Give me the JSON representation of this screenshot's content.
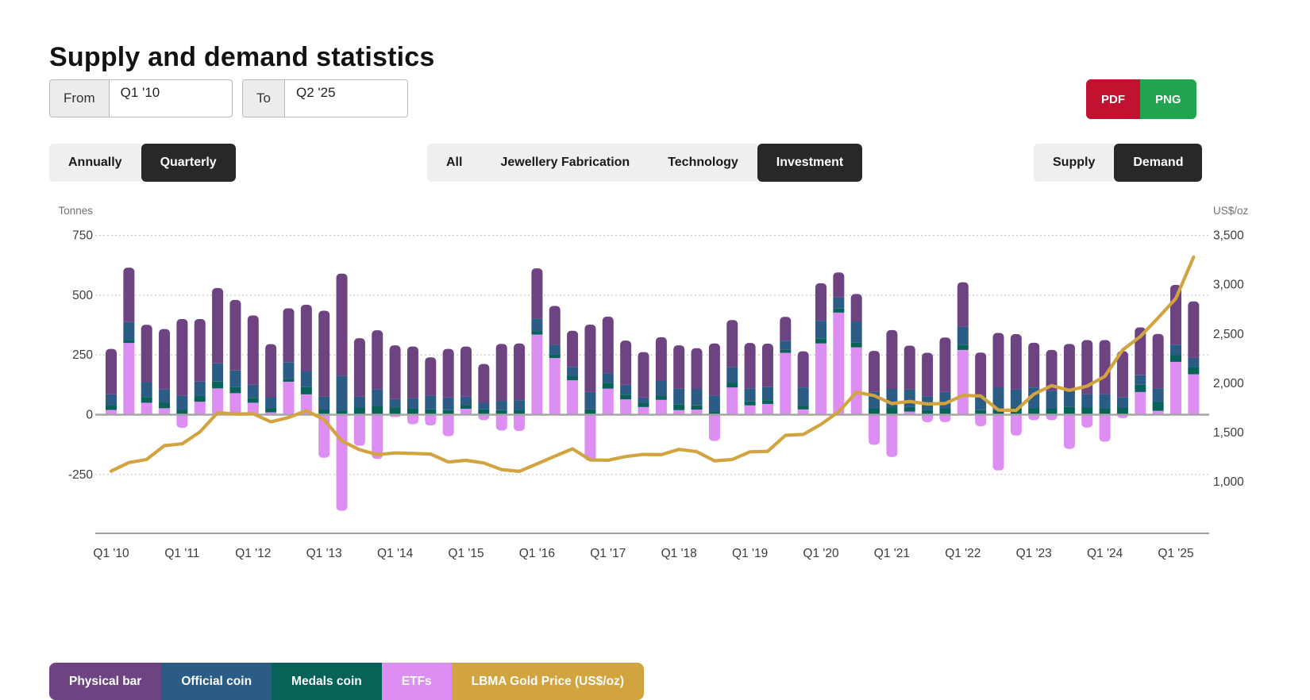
{
  "title": "Supply and demand statistics",
  "filters": {
    "from_label": "From",
    "from_value": "Q1 '10",
    "to_label": "To",
    "to_value": "Q2 '25"
  },
  "export": {
    "pdf_label": "PDF",
    "png_label": "PNG",
    "pdf_color": "#c1122f",
    "png_color": "#21a550"
  },
  "toggles": {
    "frequency": [
      {
        "label": "Annually",
        "selected": false
      },
      {
        "label": "Quarterly",
        "selected": true
      }
    ],
    "category": [
      {
        "label": "All",
        "selected": false
      },
      {
        "label": "Jewellery Fabrication",
        "selected": false
      },
      {
        "label": "Technology",
        "selected": false
      },
      {
        "label": "Investment",
        "selected": true
      }
    ],
    "flow": [
      {
        "label": "Supply",
        "selected": false
      },
      {
        "label": "Demand",
        "selected": true
      }
    ]
  },
  "colors": {
    "physical_bar": "#6d4382",
    "official_coin": "#2b5c85",
    "medals_coin": "#076257",
    "etfs": "#dd8ef2",
    "gold_line": "#d2a440",
    "grid": "#c9c9c9",
    "zero_line": "#a5a5a5",
    "axis_line": "#9e9e9e",
    "tick_text": "#3c3c3c",
    "unit_text": "#717171",
    "selected_bg": "#282828",
    "unselected_bg": "#efefef"
  },
  "chart_data": {
    "type": "bar",
    "subtype": "stacked bars with secondary-axis line",
    "left_axis": {
      "title": "Tonnes",
      "ticks": [
        {
          "label": "750",
          "value": 750
        },
        {
          "label": "500",
          "value": 500
        },
        {
          "label": "250",
          "value": 250
        },
        {
          "label": "0",
          "value": 0
        },
        {
          "label": "-250",
          "value": -250
        }
      ],
      "range": [
        -420,
        750
      ]
    },
    "right_axis": {
      "title": "US$/oz",
      "ticks": [
        {
          "label": "3,500",
          "value": 3500
        },
        {
          "label": "3,000",
          "value": 3000
        },
        {
          "label": "2,500",
          "value": 2500
        },
        {
          "label": "2,000",
          "value": 2000
        },
        {
          "label": "1,500",
          "value": 1500
        },
        {
          "label": "1,000",
          "value": 1000
        }
      ],
      "range": [
        1000,
        3500
      ]
    },
    "grid": "dotted horizontal at left-axis ticks",
    "legend_position": "bottom-left",
    "categories": [
      "Q1 '10",
      "Q2 '10",
      "Q3 '10",
      "Q4 '10",
      "Q1 '11",
      "Q2 '11",
      "Q3 '11",
      "Q4 '11",
      "Q1 '12",
      "Q2 '12",
      "Q3 '12",
      "Q4 '12",
      "Q1 '13",
      "Q2 '13",
      "Q3 '13",
      "Q4 '13",
      "Q1 '14",
      "Q2 '14",
      "Q3 '14",
      "Q4 '14",
      "Q1 '15",
      "Q2 '15",
      "Q3 '15",
      "Q4 '15",
      "Q1 '16",
      "Q2 '16",
      "Q3 '16",
      "Q4 '16",
      "Q1 '17",
      "Q2 '17",
      "Q3 '17",
      "Q4 '17",
      "Q1 '18",
      "Q2 '18",
      "Q3 '18",
      "Q4 '18",
      "Q1 '19",
      "Q2 '19",
      "Q3 '19",
      "Q4 '19",
      "Q1 '20",
      "Q2 '20",
      "Q3 '20",
      "Q4 '20",
      "Q1 '21",
      "Q2 '21",
      "Q3 '21",
      "Q4 '21",
      "Q1 '22",
      "Q2 '22",
      "Q3 '22",
      "Q4 '22",
      "Q1 '23",
      "Q2 '23",
      "Q3 '23",
      "Q4 '23",
      "Q1 '24",
      "Q2 '24",
      "Q3 '24",
      "Q4 '24",
      "Q1 '25",
      "Q2 '25"
    ],
    "series": [
      {
        "name": "Physical bar",
        "color": "#6d4382",
        "values": [
          190,
          228,
          240,
          253,
          320,
          262,
          315,
          295,
          290,
          222,
          225,
          279,
          360,
          427,
          245,
          248,
          225,
          215,
          160,
          203,
          210,
          162,
          238,
          237,
          210,
          163,
          151,
          282,
          236,
          185,
          190,
          183,
          181,
          170,
          218,
          196,
          190,
          180,
          100,
          151,
          157,
          104,
          115,
          172,
          246,
          183,
          182,
          228,
          186,
          179,
          229,
          231,
          187,
          171,
          191,
          226,
          226,
          192,
          200,
          227,
          250,
          236
        ]
      },
      {
        "name": "Official coin",
        "color": "#2b5c85",
        "values": [
          45,
          75,
          62,
          55,
          60,
          58,
          77,
          70,
          55,
          45,
          70,
          66,
          55,
          148,
          45,
          70,
          35,
          45,
          58,
          53,
          35,
          28,
          39,
          41,
          52,
          40,
          39,
          73,
          40,
          41,
          22,
          63,
          65,
          69,
          67,
          67,
          55,
          56,
          38,
          76,
          75,
          47,
          89,
          70,
          78,
          74,
          56,
          70,
          75,
          62,
          92,
          76,
          86,
          75,
          73,
          56,
          61,
          44,
          40,
          58,
          44,
          39
        ]
      },
      {
        "name": "Medals coin",
        "color": "#076257",
        "values": [
          20,
          12,
          24,
          23,
          20,
          26,
          28,
          25,
          20,
          18,
          12,
          30,
          20,
          15,
          30,
          35,
          30,
          25,
          22,
          19,
          15,
          22,
          19,
          20,
          15,
          15,
          17,
          22,
          25,
          20,
          18,
          16,
          25,
          18,
          13,
          19,
          16,
          16,
          12,
          16,
          20,
          17,
          19,
          25,
          30,
          19,
          21,
          25,
          22,
          19,
          21,
          30,
          28,
          25,
          32,
          30,
          25,
          30,
          30,
          37,
          28,
          30
        ]
      },
      {
        "name": "ETFs",
        "color": "#dd8ef2",
        "values": [
          20,
          300,
          50,
          27,
          -55,
          54,
          110,
          90,
          50,
          10,
          138,
          85,
          -180,
          -402,
          -130,
          -185,
          -10,
          -40,
          -45,
          -90,
          25,
          -23,
          -66,
          -68,
          335,
          237,
          144,
          -193,
          109,
          64,
          32,
          62,
          19,
          21,
          -110,
          114,
          39,
          45,
          259,
          22,
          298,
          427,
          282,
          -126,
          -177,
          13,
          -31,
          -31,
          271,
          -48,
          -233,
          -87,
          -23,
          -23,
          -143,
          -54,
          -113,
          -14,
          95,
          16,
          221,
          169
        ]
      }
    ],
    "line_series": {
      "name": "LBMA Gold Price (US$/oz)",
      "color": "#d2a440",
      "axis": "right",
      "values": [
        1109,
        1196,
        1227,
        1367,
        1386,
        1506,
        1702,
        1688,
        1691,
        1609,
        1652,
        1722,
        1632,
        1415,
        1326,
        1276,
        1293,
        1288,
        1282,
        1201,
        1218,
        1192,
        1124,
        1106,
        1183,
        1260,
        1335,
        1222,
        1219,
        1257,
        1278,
        1275,
        1329,
        1306,
        1213,
        1226,
        1304,
        1309,
        1472,
        1481,
        1583,
        1711,
        1909,
        1874,
        1794,
        1816,
        1790,
        1795,
        1877,
        1871,
        1729,
        1725,
        1890,
        1976,
        1928,
        1971,
        2070,
        2338,
        2474,
        2663,
        2860,
        3280
      ]
    },
    "legend": [
      {
        "label": "Physical bar",
        "color": "#6d4382"
      },
      {
        "label": "Official coin",
        "color": "#2b5c85"
      },
      {
        "label": "Medals coin",
        "color": "#076257"
      },
      {
        "label": "ETFs",
        "color": "#dd8ef2"
      },
      {
        "label": "LBMA Gold Price (US$/oz)",
        "color": "#d2a440"
      }
    ]
  }
}
